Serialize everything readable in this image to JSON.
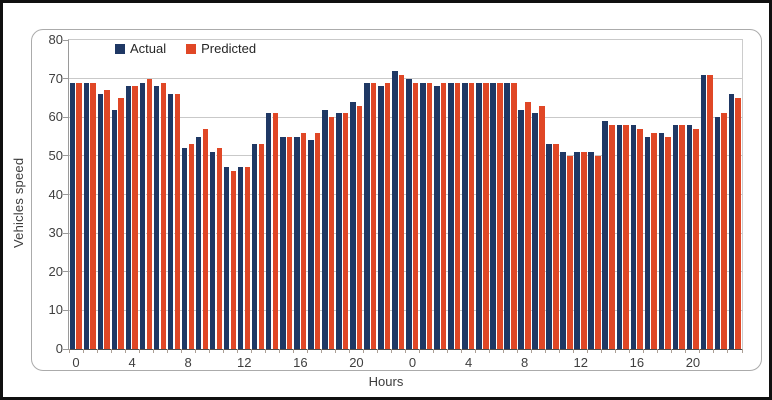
{
  "figure": {
    "y_axis_title": "Vehicles speed",
    "x_axis_title": "Hours",
    "border_color": "#101010",
    "chart_box_border_color": "#ABABAB"
  },
  "chart_data": {
    "type": "bar",
    "title": "",
    "xlabel": "Hours",
    "ylabel": "Vehicles speed",
    "ylim": [
      0,
      80
    ],
    "yticks": [
      0,
      10,
      20,
      30,
      40,
      50,
      60,
      70,
      80
    ],
    "grid": true,
    "legend_position": "top-inside",
    "grid_color": "#C9C9C9",
    "categories": [
      0,
      1,
      2,
      3,
      4,
      5,
      6,
      7,
      8,
      9,
      10,
      11,
      12,
      13,
      14,
      15,
      16,
      17,
      18,
      19,
      20,
      21,
      22,
      23,
      0,
      1,
      2,
      3,
      4,
      5,
      6,
      7,
      8,
      9,
      10,
      11,
      12,
      13,
      14,
      15,
      16,
      17,
      18,
      19,
      20,
      21,
      22,
      23
    ],
    "xtick_labels": [
      {
        "index": 0,
        "label": "0"
      },
      {
        "index": 4,
        "label": "4"
      },
      {
        "index": 8,
        "label": "8"
      },
      {
        "index": 12,
        "label": "12"
      },
      {
        "index": 16,
        "label": "16"
      },
      {
        "index": 20,
        "label": "20"
      },
      {
        "index": 24,
        "label": "0"
      },
      {
        "index": 28,
        "label": "4"
      },
      {
        "index": 32,
        "label": "8"
      },
      {
        "index": 36,
        "label": "12"
      },
      {
        "index": 40,
        "label": "16"
      },
      {
        "index": 44,
        "label": "20"
      }
    ],
    "series": [
      {
        "name": "Actual",
        "color": "#1F3864",
        "values": [
          69,
          69,
          66,
          62,
          68,
          69,
          68,
          66,
          52,
          55,
          51,
          47,
          47,
          53,
          61,
          55,
          55,
          54,
          62,
          61,
          64,
          69,
          68,
          72,
          70,
          69,
          68,
          69,
          69,
          69,
          69,
          69,
          62,
          61,
          53,
          51,
          51,
          51,
          59,
          58,
          58,
          55,
          56,
          58,
          58,
          71,
          60,
          66
        ]
      },
      {
        "name": "Predicted",
        "color": "#E04726",
        "values": [
          69,
          69,
          67,
          65,
          68,
          70,
          69,
          66,
          53,
          57,
          52,
          46,
          47,
          53,
          61,
          55,
          56,
          56,
          60,
          61,
          63,
          69,
          69,
          71,
          69,
          69,
          69,
          69,
          69,
          69,
          69,
          69,
          64,
          63,
          53,
          50,
          51,
          50,
          58,
          58,
          57,
          56,
          55,
          58,
          57,
          71,
          61,
          65
        ]
      }
    ]
  }
}
